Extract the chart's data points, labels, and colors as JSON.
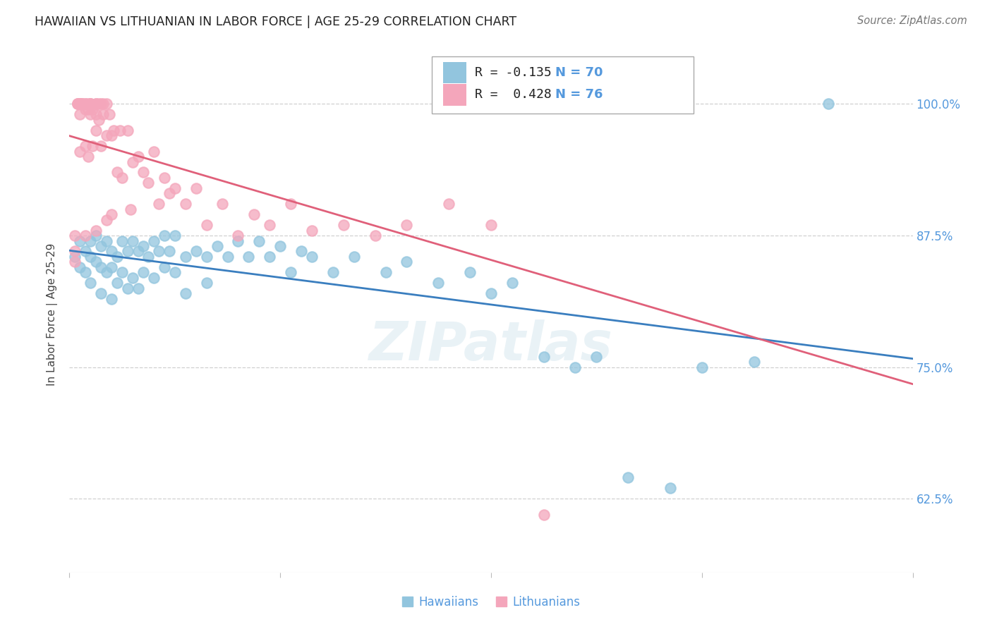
{
  "title": "HAWAIIAN VS LITHUANIAN IN LABOR FORCE | AGE 25-29 CORRELATION CHART",
  "source": "Source: ZipAtlas.com",
  "ylabel": "In Labor Force | Age 25-29",
  "yticks": [
    0.625,
    0.75,
    0.875,
    1.0
  ],
  "ytick_labels": [
    "62.5%",
    "75.0%",
    "87.5%",
    "100.0%"
  ],
  "xlim": [
    0.0,
    0.8
  ],
  "ylim": [
    0.555,
    1.045
  ],
  "legend_blue_R": "-0.135",
  "legend_blue_N": "70",
  "legend_pink_R": "0.428",
  "legend_pink_N": "76",
  "blue_scatter_color": "#92c5de",
  "pink_scatter_color": "#f4a6bb",
  "blue_line_color": "#3a7ebf",
  "pink_line_color": "#e0607a",
  "background_color": "#ffffff",
  "hawaiians_x": [
    0.005,
    0.01,
    0.01,
    0.015,
    0.015,
    0.02,
    0.02,
    0.02,
    0.025,
    0.025,
    0.03,
    0.03,
    0.03,
    0.035,
    0.035,
    0.04,
    0.04,
    0.04,
    0.045,
    0.045,
    0.05,
    0.05,
    0.055,
    0.055,
    0.06,
    0.06,
    0.065,
    0.065,
    0.07,
    0.07,
    0.075,
    0.08,
    0.08,
    0.085,
    0.09,
    0.09,
    0.095,
    0.1,
    0.1,
    0.11,
    0.11,
    0.12,
    0.13,
    0.13,
    0.14,
    0.15,
    0.16,
    0.17,
    0.18,
    0.19,
    0.2,
    0.21,
    0.22,
    0.23,
    0.25,
    0.27,
    0.3,
    0.32,
    0.35,
    0.38,
    0.4,
    0.42,
    0.45,
    0.48,
    0.5,
    0.53,
    0.57,
    0.6,
    0.65,
    0.72
  ],
  "hawaiians_y": [
    0.855,
    0.87,
    0.845,
    0.86,
    0.84,
    0.87,
    0.855,
    0.83,
    0.875,
    0.85,
    0.865,
    0.845,
    0.82,
    0.87,
    0.84,
    0.86,
    0.845,
    0.815,
    0.855,
    0.83,
    0.87,
    0.84,
    0.86,
    0.825,
    0.87,
    0.835,
    0.86,
    0.825,
    0.865,
    0.84,
    0.855,
    0.87,
    0.835,
    0.86,
    0.875,
    0.845,
    0.86,
    0.875,
    0.84,
    0.855,
    0.82,
    0.86,
    0.855,
    0.83,
    0.865,
    0.855,
    0.87,
    0.855,
    0.87,
    0.855,
    0.865,
    0.84,
    0.86,
    0.855,
    0.84,
    0.855,
    0.84,
    0.85,
    0.83,
    0.84,
    0.82,
    0.83,
    0.76,
    0.75,
    0.76,
    0.645,
    0.635,
    0.75,
    0.755,
    1.0
  ],
  "lithuanians_x": [
    0.005,
    0.005,
    0.005,
    0.008,
    0.008,
    0.008,
    0.01,
    0.01,
    0.01,
    0.01,
    0.01,
    0.012,
    0.012,
    0.012,
    0.015,
    0.015,
    0.015,
    0.015,
    0.015,
    0.018,
    0.018,
    0.018,
    0.02,
    0.02,
    0.02,
    0.02,
    0.022,
    0.022,
    0.025,
    0.025,
    0.025,
    0.025,
    0.025,
    0.028,
    0.028,
    0.03,
    0.03,
    0.032,
    0.032,
    0.035,
    0.035,
    0.035,
    0.038,
    0.04,
    0.04,
    0.042,
    0.045,
    0.048,
    0.05,
    0.055,
    0.058,
    0.06,
    0.065,
    0.07,
    0.075,
    0.08,
    0.085,
    0.09,
    0.095,
    0.1,
    0.11,
    0.12,
    0.13,
    0.145,
    0.16,
    0.175,
    0.19,
    0.21,
    0.23,
    0.26,
    0.29,
    0.32,
    0.36,
    0.4,
    0.45,
    0.58
  ],
  "lithuanians_y": [
    0.875,
    0.86,
    0.85,
    1.0,
    1.0,
    1.0,
    1.0,
    1.0,
    1.0,
    0.99,
    0.955,
    1.0,
    1.0,
    1.0,
    1.0,
    1.0,
    0.995,
    0.96,
    0.875,
    1.0,
    0.995,
    0.95,
    1.0,
    1.0,
    1.0,
    0.99,
    0.995,
    0.96,
    1.0,
    1.0,
    0.99,
    0.975,
    0.88,
    1.0,
    0.985,
    1.0,
    0.96,
    1.0,
    0.99,
    1.0,
    0.97,
    0.89,
    0.99,
    0.97,
    0.895,
    0.975,
    0.935,
    0.975,
    0.93,
    0.975,
    0.9,
    0.945,
    0.95,
    0.935,
    0.925,
    0.955,
    0.905,
    0.93,
    0.915,
    0.92,
    0.905,
    0.92,
    0.885,
    0.905,
    0.875,
    0.895,
    0.885,
    0.905,
    0.88,
    0.885,
    0.875,
    0.885,
    0.905,
    0.885,
    0.61,
    1.0
  ]
}
